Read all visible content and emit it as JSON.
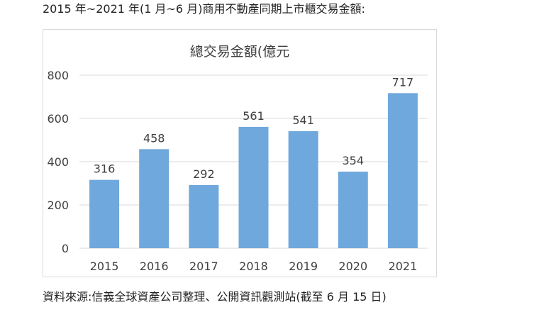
{
  "header": {
    "caption": "2015 年~2021 年(1 月~6 月)商用不動產同期上市櫃交易金額:"
  },
  "footer": {
    "source": "資料來源:信義全球資產公司整理、公開資訊觀測站(截至 6 月 15 日)"
  },
  "colors": {
    "bar": "#6fa8dc",
    "grid": "#d9d9d9",
    "text": "#404040"
  },
  "chart_data": {
    "type": "bar",
    "title": "總交易金額(億元",
    "categories": [
      "2015",
      "2016",
      "2017",
      "2018",
      "2019",
      "2020",
      "2021"
    ],
    "values": [
      316,
      458,
      292,
      561,
      541,
      354,
      717
    ],
    "data_labels": [
      "316",
      "458",
      "292",
      "561",
      "541",
      "354",
      "717"
    ],
    "yticks": [
      0,
      200,
      400,
      600,
      800
    ],
    "ylim": [
      0,
      800
    ],
    "grid": true,
    "legend": "none"
  }
}
